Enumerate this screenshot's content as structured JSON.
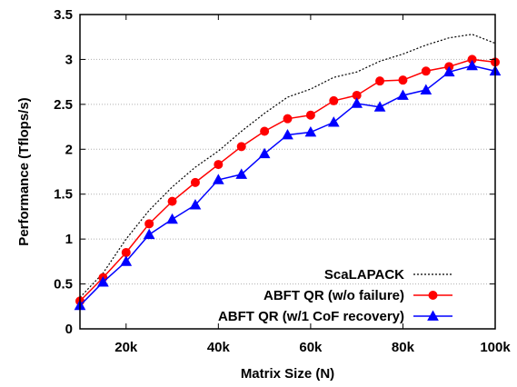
{
  "chart_data": {
    "type": "line",
    "title": "",
    "xlabel": "Matrix Size (N)",
    "ylabel": "Performance (Tflops/s)",
    "xlim": [
      10000,
      100000
    ],
    "ylim": [
      0,
      3.5
    ],
    "xticks": [
      20000,
      40000,
      60000,
      80000,
      100000
    ],
    "xtick_labels": [
      "20k",
      "40k",
      "60k",
      "80k",
      "100k"
    ],
    "yticks": [
      0,
      0.5,
      1,
      1.5,
      2,
      2.5,
      3,
      3.5
    ],
    "ytick_labels": [
      "0",
      "0.5",
      "1",
      "1.5",
      "2",
      "2.5",
      "3",
      "3.5"
    ],
    "grid": "horizontal dotted",
    "legend_position": "bottom-right",
    "x": [
      10000,
      15000,
      20000,
      25000,
      30000,
      35000,
      40000,
      45000,
      50000,
      55000,
      60000,
      65000,
      70000,
      75000,
      80000,
      85000,
      90000,
      95000,
      100000
    ],
    "series": [
      {
        "name": "ScaLAPACK",
        "color": "#000000",
        "style": "dotted",
        "marker": "none",
        "values": [
          0.35,
          0.62,
          1.0,
          1.32,
          1.58,
          1.8,
          1.98,
          2.2,
          2.4,
          2.58,
          2.67,
          2.8,
          2.86,
          2.98,
          3.06,
          3.16,
          3.24,
          3.28,
          3.18
        ]
      },
      {
        "name": "ABFT QR (w/o failure)",
        "color": "#ff0000",
        "style": "solid",
        "marker": "circle",
        "values": [
          0.31,
          0.57,
          0.85,
          1.17,
          1.42,
          1.63,
          1.83,
          2.03,
          2.2,
          2.34,
          2.38,
          2.54,
          2.6,
          2.76,
          2.77,
          2.87,
          2.92,
          3.0,
          2.97
        ]
      },
      {
        "name": "ABFT QR (w/1 CoF recovery)",
        "color": "#0000ff",
        "style": "solid",
        "marker": "triangle",
        "values": [
          0.26,
          0.52,
          0.75,
          1.05,
          1.22,
          1.38,
          1.66,
          1.72,
          1.95,
          2.16,
          2.19,
          2.3,
          2.51,
          2.47,
          2.6,
          2.66,
          2.86,
          2.93,
          2.87
        ]
      }
    ]
  }
}
